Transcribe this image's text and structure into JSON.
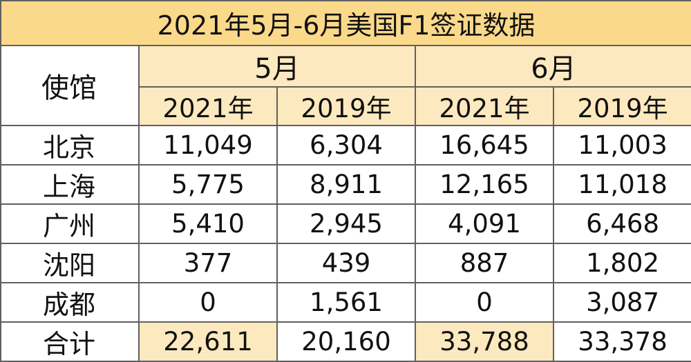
{
  "title": "2021年5月-6月美国F1签证数据",
  "header": {
    "embassy_label": "使馆",
    "months": [
      "5月",
      "6月"
    ],
    "years": [
      "2021年",
      "2019年",
      "2021年",
      "2019年"
    ]
  },
  "rows": [
    {
      "name": "北京",
      "values": [
        "11,049",
        "6,304",
        "16,645",
        "11,003"
      ]
    },
    {
      "name": "上海",
      "values": [
        "5,775",
        "8,911",
        "12,165",
        "11,018"
      ]
    },
    {
      "name": "广州",
      "values": [
        "5,410",
        "2,945",
        "4,091",
        "6,468"
      ]
    },
    {
      "name": "沈阳",
      "values": [
        "377",
        "439",
        "887",
        "1,802"
      ]
    },
    {
      "name": "成都",
      "values": [
        "0",
        "1,561",
        "0",
        "3,087"
      ]
    }
  ],
  "total": {
    "name": "合计",
    "values": [
      "22,611",
      "20,160",
      "33,788",
      "33,378"
    ]
  },
  "colors": {
    "title_bg": "#fbd98a",
    "header_bg": "#fde9bf",
    "highlight_bg": "#fde9bf",
    "border": "#5f5f5f"
  }
}
